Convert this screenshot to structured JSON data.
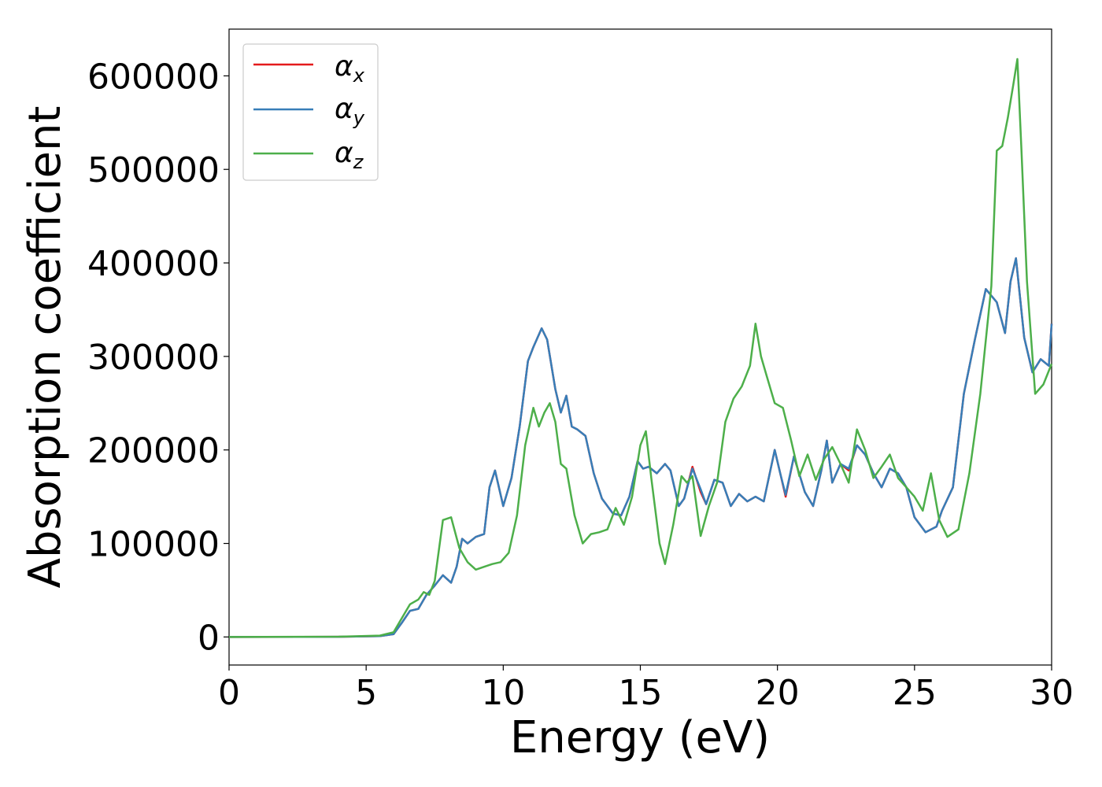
{
  "chart_data": {
    "type": "line",
    "xlabel": "Energy (eV)",
    "ylabel": "Absorption coefficient",
    "xlim": [
      0,
      30
    ],
    "ylim": [
      -30000,
      650000
    ],
    "xticks": [
      "0",
      "5",
      "10",
      "15",
      "20",
      "25",
      "30"
    ],
    "xtick_values": [
      0,
      5,
      10,
      15,
      20,
      25,
      30
    ],
    "yticks": [
      "0",
      "100000",
      "200000",
      "300000",
      "400000",
      "500000",
      "600000"
    ],
    "ytick_values": [
      0,
      100000,
      200000,
      300000,
      400000,
      500000,
      600000
    ],
    "grid": false,
    "legend_position": "top-left",
    "series": [
      {
        "name": "αx",
        "symbol": "α",
        "subscript": "x",
        "color": "#e41a1c",
        "x": [
          0,
          4,
          5.5,
          6.0,
          6.3,
          6.6,
          6.9,
          7.2,
          7.5,
          7.8,
          8.1,
          8.3,
          8.5,
          8.7,
          9.0,
          9.3,
          9.5,
          9.7,
          10.0,
          10.3,
          10.6,
          10.9,
          11.1,
          11.4,
          11.6,
          11.9,
          12.1,
          12.3,
          12.5,
          12.7,
          13.0,
          13.3,
          13.6,
          14.0,
          14.3,
          14.6,
          14.9,
          15.1,
          15.3,
          15.6,
          15.9,
          16.1,
          16.4,
          16.6,
          16.9,
          17.2,
          17.4,
          17.7,
          18.0,
          18.3,
          18.6,
          18.9,
          19.2,
          19.5,
          19.9,
          20.1,
          20.3,
          20.6,
          21.0,
          21.3,
          21.6,
          21.8,
          22.0,
          22.3,
          22.6,
          22.9,
          23.2,
          23.5,
          23.8,
          24.1,
          24.4,
          24.7,
          25.0,
          25.4,
          25.8,
          26.0,
          26.4,
          26.8,
          27.2,
          27.6,
          28.0,
          28.3,
          28.5,
          28.7,
          29.0,
          29.3,
          29.6,
          29.9,
          30.0
        ],
        "y": [
          0,
          200,
          1000,
          3000,
          15000,
          28000,
          30000,
          45000,
          55000,
          66000,
          58000,
          75000,
          105000,
          100000,
          107000,
          110000,
          160000,
          178000,
          140000,
          170000,
          225000,
          295000,
          310000,
          330000,
          318000,
          265000,
          240000,
          258000,
          225000,
          222000,
          215000,
          175000,
          148000,
          132000,
          130000,
          150000,
          188000,
          180000,
          182000,
          175000,
          185000,
          178000,
          140000,
          148000,
          182000,
          155000,
          142000,
          168000,
          165000,
          140000,
          153000,
          145000,
          150000,
          145000,
          200000,
          175000,
          150000,
          193000,
          155000,
          140000,
          178000,
          210000,
          165000,
          185000,
          178000,
          205000,
          195000,
          175000,
          160000,
          180000,
          175000,
          160000,
          128000,
          112000,
          118000,
          135000,
          160000,
          260000,
          318000,
          372000,
          358000,
          325000,
          380000,
          405000,
          320000,
          283000,
          297000,
          290000,
          335000
        ]
      },
      {
        "name": "αy",
        "symbol": "α",
        "subscript": "y",
        "color": "#377eb8",
        "x": [
          0,
          4,
          5.5,
          6.0,
          6.3,
          6.6,
          6.9,
          7.2,
          7.5,
          7.8,
          8.1,
          8.3,
          8.5,
          8.7,
          9.0,
          9.3,
          9.5,
          9.7,
          10.0,
          10.3,
          10.6,
          10.9,
          11.1,
          11.4,
          11.6,
          11.9,
          12.1,
          12.3,
          12.5,
          12.7,
          13.0,
          13.3,
          13.6,
          14.0,
          14.3,
          14.6,
          14.9,
          15.1,
          15.3,
          15.6,
          15.9,
          16.1,
          16.4,
          16.6,
          16.9,
          17.2,
          17.4,
          17.7,
          18.0,
          18.3,
          18.6,
          18.9,
          19.2,
          19.5,
          19.9,
          20.1,
          20.3,
          20.6,
          21.0,
          21.3,
          21.6,
          21.8,
          22.0,
          22.3,
          22.6,
          22.9,
          23.2,
          23.5,
          23.8,
          24.1,
          24.4,
          24.7,
          25.0,
          25.4,
          25.8,
          26.0,
          26.4,
          26.8,
          27.2,
          27.6,
          28.0,
          28.3,
          28.5,
          28.7,
          29.0,
          29.3,
          29.6,
          29.9,
          30.0
        ],
        "y": [
          0,
          200,
          1000,
          3000,
          15000,
          28000,
          30000,
          45000,
          55000,
          66000,
          58000,
          75000,
          105000,
          100000,
          107000,
          110000,
          160000,
          178000,
          140000,
          170000,
          225000,
          295000,
          310000,
          330000,
          318000,
          265000,
          240000,
          258000,
          225000,
          222000,
          215000,
          175000,
          148000,
          132000,
          130000,
          150000,
          188000,
          180000,
          182000,
          175000,
          185000,
          178000,
          140000,
          148000,
          180000,
          158000,
          142000,
          168000,
          165000,
          140000,
          153000,
          145000,
          150000,
          145000,
          200000,
          175000,
          152000,
          193000,
          155000,
          140000,
          178000,
          210000,
          165000,
          185000,
          180000,
          205000,
          195000,
          175000,
          160000,
          180000,
          175000,
          160000,
          128000,
          112000,
          118000,
          135000,
          160000,
          260000,
          318000,
          372000,
          358000,
          325000,
          380000,
          405000,
          320000,
          283000,
          297000,
          290000,
          335000
        ]
      },
      {
        "name": "αz",
        "symbol": "α",
        "subscript": "z",
        "color": "#4daf4a",
        "x": [
          0,
          4,
          5.5,
          6.0,
          6.3,
          6.6,
          6.9,
          7.1,
          7.3,
          7.5,
          7.8,
          8.1,
          8.4,
          8.7,
          9.0,
          9.3,
          9.6,
          9.9,
          10.2,
          10.5,
          10.8,
          11.1,
          11.3,
          11.5,
          11.7,
          11.9,
          12.1,
          12.3,
          12.6,
          12.9,
          13.2,
          13.5,
          13.8,
          14.1,
          14.4,
          14.7,
          15.0,
          15.2,
          15.4,
          15.7,
          15.9,
          16.2,
          16.5,
          16.7,
          16.9,
          17.2,
          17.5,
          17.8,
          18.1,
          18.4,
          18.7,
          19.0,
          19.2,
          19.4,
          19.6,
          19.9,
          20.2,
          20.5,
          20.8,
          21.1,
          21.4,
          21.7,
          22.0,
          22.3,
          22.6,
          22.9,
          23.2,
          23.5,
          23.8,
          24.1,
          24.4,
          24.7,
          25.0,
          25.3,
          25.6,
          25.9,
          26.2,
          26.6,
          27.0,
          27.4,
          27.8,
          28.0,
          28.2,
          28.4,
          28.6,
          28.75,
          28.9,
          29.1,
          29.4,
          29.7,
          30.0
        ],
        "y": [
          0,
          300,
          1500,
          5000,
          20000,
          35000,
          40000,
          48000,
          45000,
          60000,
          125000,
          128000,
          95000,
          80000,
          72000,
          75000,
          78000,
          80000,
          90000,
          130000,
          205000,
          245000,
          225000,
          240000,
          250000,
          230000,
          185000,
          180000,
          130000,
          100000,
          110000,
          112000,
          115000,
          138000,
          120000,
          150000,
          205000,
          220000,
          170000,
          100000,
          78000,
          120000,
          172000,
          165000,
          172000,
          108000,
          140000,
          165000,
          230000,
          255000,
          268000,
          290000,
          335000,
          300000,
          280000,
          250000,
          245000,
          210000,
          172000,
          195000,
          168000,
          190000,
          203000,
          185000,
          165000,
          222000,
          200000,
          170000,
          182000,
          195000,
          170000,
          160000,
          150000,
          135000,
          175000,
          125000,
          107000,
          115000,
          175000,
          260000,
          375000,
          520000,
          525000,
          555000,
          590000,
          618000,
          520000,
          380000,
          260000,
          270000,
          292000
        ]
      }
    ]
  }
}
